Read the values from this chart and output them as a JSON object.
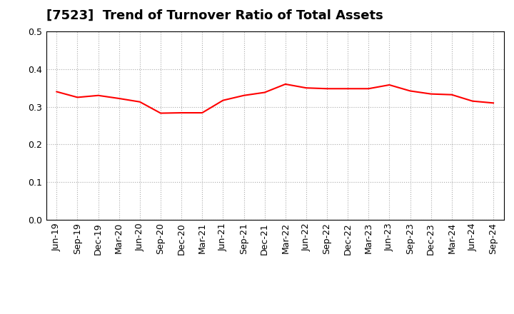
{
  "title": "[7523]  Trend of Turnover Ratio of Total Assets",
  "labels": [
    "Jun-19",
    "Sep-19",
    "Dec-19",
    "Mar-20",
    "Jun-20",
    "Sep-20",
    "Dec-20",
    "Mar-21",
    "Jun-21",
    "Sep-21",
    "Dec-21",
    "Mar-22",
    "Jun-22",
    "Sep-22",
    "Dec-22",
    "Mar-23",
    "Jun-23",
    "Sep-23",
    "Dec-23",
    "Mar-24",
    "Jun-24",
    "Sep-24"
  ],
  "values": [
    0.34,
    0.325,
    0.33,
    0.322,
    0.313,
    0.283,
    0.284,
    0.284,
    0.317,
    0.33,
    0.338,
    0.36,
    0.35,
    0.348,
    0.348,
    0.348,
    0.358,
    0.342,
    0.334,
    0.332,
    0.315,
    0.31
  ],
  "line_color": "#FF0000",
  "line_width": 1.5,
  "ylim": [
    0.0,
    0.5
  ],
  "yticks": [
    0.0,
    0.1,
    0.2,
    0.3,
    0.4,
    0.5
  ],
  "grid_color": "#aaaaaa",
  "grid_style": "dotted",
  "bg_color": "#ffffff",
  "title_fontsize": 13,
  "tick_fontsize": 9
}
